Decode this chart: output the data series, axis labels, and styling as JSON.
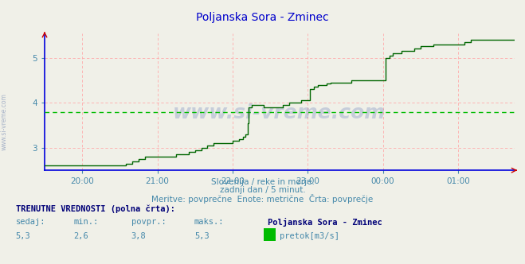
{
  "title": "Poljanska Sora - Zminec",
  "title_color": "#0000cc",
  "bg_color": "#f0f0e8",
  "plot_bg_color": "#f0f0e8",
  "grid_color_v": "#ffaaaa",
  "grid_color_h": "#ffaaaa",
  "axis_color": "#0000dd",
  "line_color": "#006600",
  "avg_line_color": "#00bb00",
  "avg_value": 3.8,
  "ylim": [
    2.5,
    5.55
  ],
  "yticks": [
    3.0,
    4.0,
    5.0
  ],
  "tick_color": "#4488aa",
  "text_color": "#4488aa",
  "watermark": "www.si-vreme.com",
  "sub_text1": "Slovenija / reke in morje.",
  "sub_text2": "zadnji dan / 5 minut.",
  "sub_text3": "Meritve: povprečne  Enote: metrične  Črta: povprečje",
  "label_sedaj": "sedaj:",
  "label_min": "min.:",
  "label_povpr": "povpr.:",
  "label_maks": "maks.:",
  "val_sedaj": "5,3",
  "val_min": "2,6",
  "val_povpr": "3,8",
  "val_maks": "5,3",
  "station_name": "Poljanska Sora - Zminec",
  "legend_label": "pretok[m3/s]",
  "trenutne_label": "TRENUTNE VREDNOSTI (polna črta):",
  "x_tick_labels": [
    "20:00",
    "21:00",
    "22:00",
    "23:00",
    "00:00",
    "01:00"
  ],
  "x_tick_positions": [
    30,
    90,
    150,
    210,
    270,
    330
  ],
  "xlim": [
    0,
    375
  ],
  "flow_data": [
    [
      0,
      2.6
    ],
    [
      5,
      2.6
    ],
    [
      10,
      2.6
    ],
    [
      15,
      2.6
    ],
    [
      20,
      2.6
    ],
    [
      25,
      2.6
    ],
    [
      30,
      2.6
    ],
    [
      35,
      2.6
    ],
    [
      40,
      2.6
    ],
    [
      45,
      2.6
    ],
    [
      50,
      2.6
    ],
    [
      55,
      2.6
    ],
    [
      60,
      2.6
    ],
    [
      65,
      2.65
    ],
    [
      70,
      2.7
    ],
    [
      75,
      2.75
    ],
    [
      80,
      2.8
    ],
    [
      85,
      2.8
    ],
    [
      90,
      2.8
    ],
    [
      95,
      2.8
    ],
    [
      100,
      2.8
    ],
    [
      105,
      2.85
    ],
    [
      110,
      2.85
    ],
    [
      115,
      2.9
    ],
    [
      120,
      2.95
    ],
    [
      125,
      3.0
    ],
    [
      130,
      3.05
    ],
    [
      135,
      3.1
    ],
    [
      140,
      3.1
    ],
    [
      145,
      3.1
    ],
    [
      150,
      3.15
    ],
    [
      155,
      3.2
    ],
    [
      158,
      3.25
    ],
    [
      160,
      3.3
    ],
    [
      162,
      3.55
    ],
    [
      163,
      3.9
    ],
    [
      165,
      3.95
    ],
    [
      170,
      3.95
    ],
    [
      175,
      3.9
    ],
    [
      180,
      3.9
    ],
    [
      185,
      3.9
    ],
    [
      190,
      3.95
    ],
    [
      195,
      4.0
    ],
    [
      200,
      4.0
    ],
    [
      205,
      4.05
    ],
    [
      210,
      4.05
    ],
    [
      212,
      4.3
    ],
    [
      215,
      4.35
    ],
    [
      218,
      4.4
    ],
    [
      220,
      4.4
    ],
    [
      225,
      4.42
    ],
    [
      228,
      4.45
    ],
    [
      230,
      4.45
    ],
    [
      235,
      4.45
    ],
    [
      240,
      4.45
    ],
    [
      245,
      4.5
    ],
    [
      250,
      4.5
    ],
    [
      255,
      4.5
    ],
    [
      258,
      4.5
    ],
    [
      260,
      4.5
    ],
    [
      262,
      4.5
    ],
    [
      265,
      4.5
    ],
    [
      268,
      4.5
    ],
    [
      270,
      4.5
    ],
    [
      272,
      5.0
    ],
    [
      275,
      5.05
    ],
    [
      278,
      5.1
    ],
    [
      280,
      5.1
    ],
    [
      285,
      5.15
    ],
    [
      290,
      5.15
    ],
    [
      295,
      5.2
    ],
    [
      298,
      5.2
    ],
    [
      300,
      5.25
    ],
    [
      305,
      5.25
    ],
    [
      310,
      5.3
    ],
    [
      315,
      5.3
    ],
    [
      320,
      5.3
    ],
    [
      325,
      5.3
    ],
    [
      330,
      5.3
    ],
    [
      335,
      5.35
    ],
    [
      338,
      5.35
    ],
    [
      340,
      5.4
    ],
    [
      345,
      5.4
    ],
    [
      350,
      5.4
    ],
    [
      355,
      5.4
    ],
    [
      360,
      5.4
    ],
    [
      365,
      5.4
    ],
    [
      370,
      5.4
    ],
    [
      375,
      5.4
    ]
  ]
}
